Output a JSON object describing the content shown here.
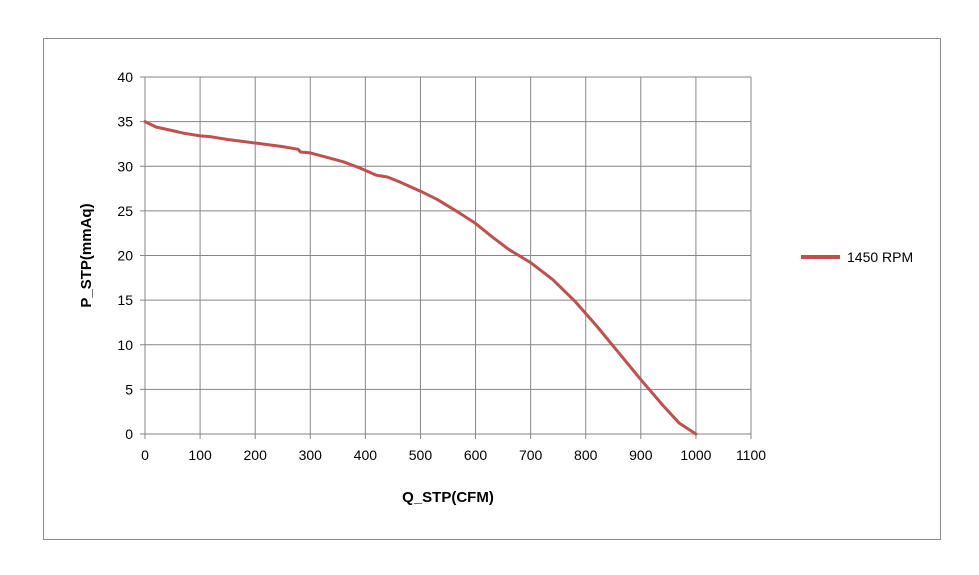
{
  "chart_data": {
    "type": "line",
    "title": "",
    "xlabel": "Q_STP(CFM)",
    "ylabel": "P_STP(mmAq)",
    "xlim": [
      0,
      1100
    ],
    "ylim": [
      0,
      40
    ],
    "xticks": [
      0,
      100,
      200,
      300,
      400,
      500,
      600,
      700,
      800,
      900,
      1000,
      1100
    ],
    "yticks": [
      0,
      5,
      10,
      15,
      20,
      25,
      30,
      35,
      40
    ],
    "grid": true,
    "legend_position": "right",
    "series": [
      {
        "name": "1450 RPM",
        "color": "#c0504d",
        "x": [
          0,
          20,
          50,
          70,
          100,
          120,
          150,
          200,
          250,
          278,
          282,
          300,
          330,
          360,
          390,
          420,
          440,
          460,
          500,
          530,
          570,
          600,
          630,
          660,
          700,
          740,
          780,
          820,
          860,
          900,
          940,
          970,
          1000
        ],
        "y": [
          35,
          34.4,
          34.0,
          33.7,
          33.4,
          33.3,
          33.0,
          32.6,
          32.2,
          31.9,
          31.6,
          31.5,
          31.0,
          30.5,
          29.8,
          29.0,
          28.8,
          28.3,
          27.2,
          26.3,
          24.8,
          23.6,
          22.1,
          20.7,
          19.2,
          17.3,
          14.9,
          12.1,
          9.1,
          6.1,
          3.2,
          1.2,
          0
        ]
      }
    ]
  }
}
